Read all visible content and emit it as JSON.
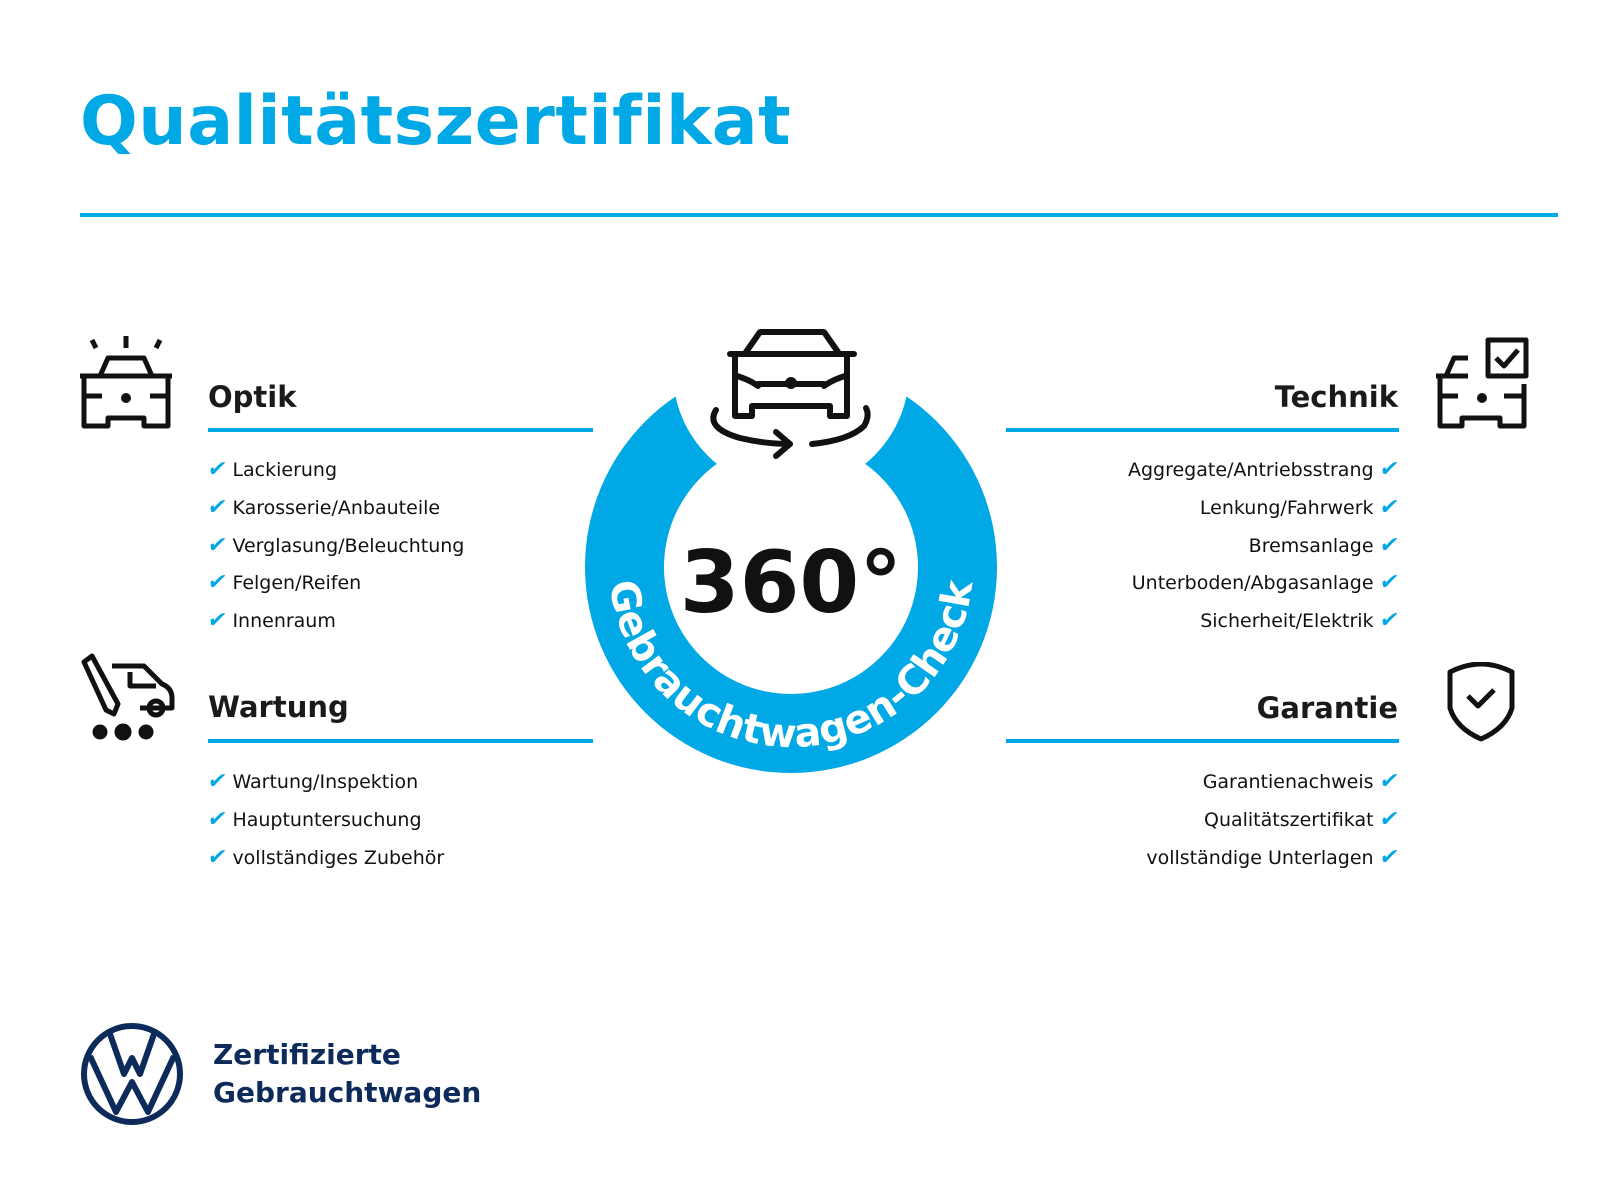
{
  "title": "Qualitätszertifikat",
  "colors": {
    "accent": "#00a8e6",
    "brand_navy": "#0c2a5a",
    "text": "#1a1a1a"
  },
  "center_badge": {
    "value": "360°",
    "arc_text": "Gebrauchtwagen-Check",
    "icon": "car-rotate-icon"
  },
  "sections": {
    "optik": {
      "title": "Optik",
      "icon": "car-lights-icon",
      "items": [
        "Lackierung",
        "Karosserie/Anbauteile",
        "Verglasung/Beleuchtung",
        "Felgen/Reifen",
        "Innenraum"
      ]
    },
    "wartung": {
      "title": "Wartung",
      "icon": "car-tool-icon",
      "items": [
        "Wartung/Inspektion",
        "Hauptuntersuchung",
        "vollständiges Zubehör"
      ]
    },
    "technik": {
      "title": "Technik",
      "icon": "car-checkbox-icon",
      "items": [
        "Aggregate/Antriebsstrang",
        "Lenkung/Fahrwerk",
        "Bremsanlage",
        "Unterboden/Abgasanlage",
        "Sicherheit/Elektrik"
      ]
    },
    "garantie": {
      "title": "Garantie",
      "icon": "shield-check-icon",
      "items": [
        "Garantienachweis",
        "Qualitätszertifikat",
        "vollständige Unterlagen"
      ]
    }
  },
  "check_glyph": "✔",
  "brand": {
    "line1": "Zertifizierte",
    "line2": "Gebrauchtwagen",
    "logo": "vw-logo"
  }
}
